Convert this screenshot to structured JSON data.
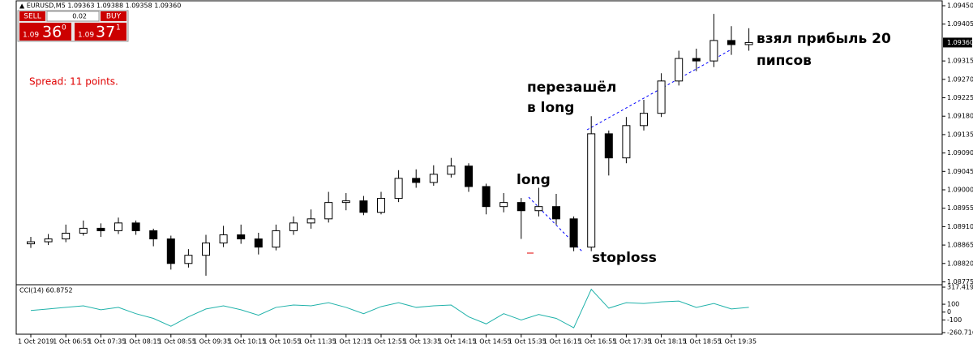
{
  "chart_data": {
    "type": "candlestick",
    "header": "▲ EURUSD,M5  1.09363 1.09388 1.09358 1.09360",
    "trade_panel": {
      "sell": "SELL",
      "lot": "0.02",
      "buy": "BUY",
      "sell_big": "1.09",
      "sell_pips": "36",
      "sell_point": "0",
      "buy_big": "1.09",
      "buy_pips": "37",
      "buy_point": "1"
    },
    "spread": "Spread: 11 points.",
    "annotations": [
      "перезашёл",
      "в long",
      "long",
      "stoploss",
      "взял прибыль 20",
      "пипсов"
    ],
    "categories": [
      "1 Oct 2019",
      null,
      "1 Oct 06:55",
      null,
      "1 Oct 07:35",
      null,
      "1 Oct 08:15",
      null,
      "1 Oct 08:55",
      null,
      "1 Oct 09:35",
      null,
      "1 Oct 10:15",
      null,
      "1 Oct 10:55",
      null,
      "1 Oct 11:35",
      null,
      "1 Oct 12:15",
      null,
      "1 Oct 12:55",
      null,
      "1 Oct 13:35",
      null,
      "1 Oct 14:15",
      null,
      "1 Oct 14:55",
      null,
      "1 Oct 15:35",
      null,
      "1 Oct 16:15",
      null,
      "1 Oct 16:55",
      null,
      "1 Oct 17:35",
      null,
      "1 Oct 18:15",
      null,
      "1 Oct 18:55",
      null,
      "1 Oct 19:35",
      null
    ],
    "open": [
      1.08868,
      1.08873,
      1.0888,
      1.08894,
      1.08906,
      1.089,
      1.08919,
      1.089,
      1.0888,
      1.0882,
      1.0884,
      1.0887,
      1.0889,
      1.0888,
      1.0886,
      1.089,
      1.08919,
      1.08929,
      1.08969,
      1.08973,
      1.08945,
      1.08979,
      1.09028,
      1.09018,
      1.09038,
      1.09058,
      1.09008,
      1.08959,
      1.08969,
      1.08949,
      1.08959,
      1.08929,
      1.0886,
      1.09137,
      1.09078,
      1.09157,
      1.09187,
      1.09266,
      1.09321,
      1.09315,
      1.09365,
      1.09355
    ],
    "high": [
      1.08885,
      1.08892,
      1.08915,
      1.08925,
      1.08918,
      1.08932,
      1.08925,
      1.08905,
      1.08888,
      1.08855,
      1.0889,
      1.08912,
      1.08915,
      1.08895,
      1.08915,
      1.08935,
      1.08952,
      1.08995,
      1.08992,
      1.08985,
      1.08995,
      1.09048,
      1.0905,
      1.0906,
      1.09078,
      1.09065,
      1.09015,
      1.08992,
      1.0898,
      1.09005,
      1.0899,
      1.08935,
      1.0918,
      1.09145,
      1.09178,
      1.0922,
      1.09285,
      1.0934,
      1.09345,
      1.0943,
      1.094,
      1.09395
    ],
    "low": [
      1.08858,
      1.08865,
      1.08872,
      1.08888,
      1.08885,
      1.08892,
      1.0889,
      1.08862,
      1.08805,
      1.0881,
      1.0879,
      1.0886,
      1.08868,
      1.08842,
      1.08852,
      1.0889,
      1.08905,
      1.0892,
      1.0895,
      1.08938,
      1.0894,
      1.0897,
      1.09005,
      1.0901,
      1.0903,
      1.08995,
      1.0894,
      1.08945,
      1.0888,
      1.08935,
      1.08915,
      1.0885,
      1.0885,
      1.09035,
      1.09065,
      1.09145,
      1.09178,
      1.09255,
      1.0929,
      1.093,
      1.0933,
      1.0934
    ],
    "close": [
      1.08873,
      1.0888,
      1.08894,
      1.08906,
      1.089,
      1.08919,
      1.089,
      1.0888,
      1.0882,
      1.0884,
      1.0887,
      1.0889,
      1.0888,
      1.0886,
      1.089,
      1.08919,
      1.08929,
      1.08969,
      1.08973,
      1.08945,
      1.08979,
      1.09028,
      1.09018,
      1.09038,
      1.09058,
      1.09008,
      1.08959,
      1.08969,
      1.08949,
      1.08959,
      1.08929,
      1.0886,
      1.09137,
      1.09078,
      1.09157,
      1.09187,
      1.09266,
      1.09321,
      1.09315,
      1.09365,
      1.09355,
      1.0936
    ],
    "ylim": [
      1.0877,
      1.0946
    ],
    "yticks": [
      {
        "value": 1.0945,
        "label": "1.09450"
      },
      1.09405,
      1.09315,
      {
        "value": 1.0927,
        "label": "1.09270"
      },
      1.09225,
      {
        "value": 1.0918,
        "label": "1.09180"
      },
      1.09135,
      {
        "value": 1.0909,
        "label": "1.09090"
      },
      1.09045,
      {
        "value": 1.09,
        "label": "1.09000"
      },
      1.08955,
      {
        "value": 1.0891,
        "label": "1.08910"
      },
      1.08865,
      {
        "value": 1.0882,
        "label": "1.08820"
      },
      1.08775
    ],
    "current_price": {
      "value": 1.0936,
      "label": "1.09360"
    },
    "indicator": {
      "label": "CCI(14) 60.8752",
      "color": "#20b2aa",
      "values": [
        20,
        40,
        60,
        80,
        30,
        60,
        -20,
        -80,
        -180,
        -60,
        40,
        80,
        30,
        -40,
        60,
        90,
        80,
        120,
        60,
        -20,
        70,
        120,
        60,
        80,
        90,
        -60,
        -150,
        -20,
        -100,
        -30,
        -80,
        -200,
        290,
        50,
        120,
        110,
        130,
        140,
        60,
        110,
        40,
        60.8752
      ],
      "ylim": [
        -260.716,
        317.4193
      ],
      "yticks": [
        317.4193,
        100,
        0,
        -100,
        -260.716
      ]
    }
  }
}
